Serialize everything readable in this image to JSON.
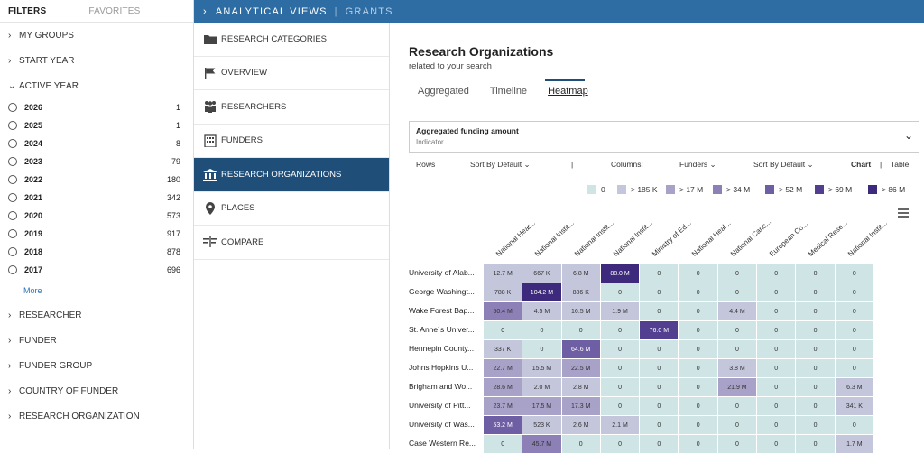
{
  "filters": {
    "tabs": {
      "active": "FILTERS",
      "inactive": "FAVORITES"
    },
    "sections_top": [
      {
        "label": "MY GROUPS",
        "chev": "›"
      },
      {
        "label": "START YEAR",
        "chev": "›"
      }
    ],
    "active_year": {
      "label": "ACTIVE YEAR",
      "chev": "⌄"
    },
    "years": [
      {
        "label": "2026",
        "count": "1"
      },
      {
        "label": "2025",
        "count": "1"
      },
      {
        "label": "2024",
        "count": "8"
      },
      {
        "label": "2023",
        "count": "79"
      },
      {
        "label": "2022",
        "count": "180"
      },
      {
        "label": "2021",
        "count": "342"
      },
      {
        "label": "2020",
        "count": "573"
      },
      {
        "label": "2019",
        "count": "917"
      },
      {
        "label": "2018",
        "count": "878"
      },
      {
        "label": "2017",
        "count": "696"
      }
    ],
    "more_label": "More",
    "sections_bottom": [
      {
        "label": "RESEARCHER"
      },
      {
        "label": "FUNDER"
      },
      {
        "label": "FUNDER GROUP"
      },
      {
        "label": "COUNTRY OF FUNDER"
      },
      {
        "label": "RESEARCH ORGANIZATION"
      }
    ]
  },
  "topbar": {
    "chevron": "›",
    "title": "ANALYTICAL VIEWS",
    "separator": "|",
    "grants": "GRANTS"
  },
  "nav": [
    {
      "label": "RESEARCH CATEGORIES",
      "icon": "folder-icon"
    },
    {
      "label": "OVERVIEW",
      "icon": "flag-icon"
    },
    {
      "label": "RESEARCHERS",
      "icon": "people-icon"
    },
    {
      "label": "FUNDERS",
      "icon": "building-icon"
    },
    {
      "label": "RESEARCH ORGANIZATIONS",
      "icon": "institution-icon",
      "active": true
    },
    {
      "label": "PLACES",
      "icon": "pin-icon"
    },
    {
      "label": "COMPARE",
      "icon": "compare-icon"
    }
  ],
  "main": {
    "title": "Research Organizations",
    "subtitle": "related to your search",
    "tabs": [
      "Aggregated",
      "Timeline",
      "Heatmap"
    ],
    "active_tab": "Heatmap",
    "indicator": {
      "title": "Aggregated funding amount",
      "subtitle": "Indicator",
      "chevron": "⌄"
    },
    "controls": {
      "rows": "Rows",
      "rows_sort": "Sort By Default ⌄",
      "divider": "|",
      "columns": "Columns:",
      "columns_type": "Funders ⌄",
      "columns_sort": "Sort By Default ⌄",
      "chart": "Chart",
      "sep": "|",
      "table": "Table"
    },
    "legend": [
      {
        "label": "0",
        "color": "#cfe4e4"
      },
      {
        "label": "> 185 K",
        "color": "#c4c6db"
      },
      {
        "label": "> 17 M",
        "color": "#a9a2c8"
      },
      {
        "label": "> 34 M",
        "color": "#8c80b6"
      },
      {
        "label": "> 52 M",
        "color": "#6e5ea3"
      },
      {
        "label": "> 69 M",
        "color": "#533f90"
      },
      {
        "label": "> 86 M",
        "color": "#3d2a7d"
      }
    ]
  },
  "chart_data": {
    "type": "heatmap",
    "title": "Aggregated funding amount",
    "columns": [
      "National Hear...",
      "National Instit...",
      "National Instit...",
      "National Instit...",
      "Ministry of Ed...",
      "National Heal...",
      "National Canc...",
      "European Co...",
      "Medical Rese...",
      "National Instit..."
    ],
    "rows": [
      "University of Alab...",
      "George Washingt...",
      "Wake Forest Bap...",
      "St. Anne´s Univer...",
      "Hennepin County...",
      "Johns Hopkins U...",
      "Brigham and Wo...",
      "University of Pitt...",
      "University of Was...",
      "Case Western Re..."
    ],
    "values": [
      [
        "12.7 M",
        "667 K",
        "6.8 M",
        "88.0 M",
        "0",
        "0",
        "0",
        "0",
        "0",
        "0"
      ],
      [
        "788 K",
        "104.2 M",
        "886 K",
        "0",
        "0",
        "0",
        "0",
        "0",
        "0",
        "0"
      ],
      [
        "50.4 M",
        "4.5 M",
        "16.5 M",
        "1.9 M",
        "0",
        "0",
        "4.4 M",
        "0",
        "0",
        "0"
      ],
      [
        "0",
        "0",
        "0",
        "0",
        "76.0 M",
        "0",
        "0",
        "0",
        "0",
        "0"
      ],
      [
        "337 K",
        "0",
        "64.6 M",
        "0",
        "0",
        "0",
        "0",
        "0",
        "0",
        "0"
      ],
      [
        "22.7 M",
        "15.5 M",
        "22.5 M",
        "0",
        "0",
        "0",
        "3.8 M",
        "0",
        "0",
        "0"
      ],
      [
        "28.6 M",
        "2.0 M",
        "2.8 M",
        "0",
        "0",
        "0",
        "21.9 M",
        "0",
        "0",
        "6.3 M"
      ],
      [
        "23.7 M",
        "17.5 M",
        "17.3 M",
        "0",
        "0",
        "0",
        "0",
        "0",
        "0",
        "341 K"
      ],
      [
        "53.2 M",
        "523 K",
        "2.6 M",
        "2.1 M",
        "0",
        "0",
        "0",
        "0",
        "0",
        "0"
      ],
      [
        "0",
        "45.7 M",
        "0",
        "0",
        "0",
        "0",
        "0",
        "0",
        "0",
        "1.7 M"
      ]
    ],
    "color_bins": [
      {
        "min": 0,
        "color": "#cfe4e4"
      },
      {
        "min": 185000,
        "color": "#c4c6db"
      },
      {
        "min": 17000000,
        "color": "#a9a2c8"
      },
      {
        "min": 34000000,
        "color": "#8c80b6"
      },
      {
        "min": 52000000,
        "color": "#6e5ea3"
      },
      {
        "min": 69000000,
        "color": "#533f90"
      },
      {
        "min": 86000000,
        "color": "#3d2a7d"
      }
    ]
  }
}
